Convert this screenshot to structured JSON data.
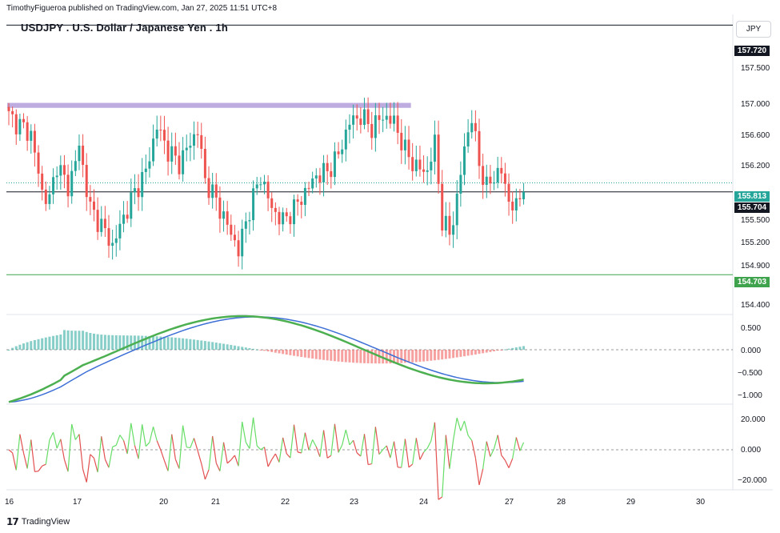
{
  "header": {
    "published_by": "TimothyFigueroa published on TradingView.com, Jan 27, 2025 11:51 UTC+8"
  },
  "chart": {
    "title": "USDJPY . U.S. Dollar / Japanese Yen . 1h",
    "currency": "JPY",
    "colors": {
      "up": "#26a69a",
      "down": "#ef5350",
      "zone": "#b39ddb",
      "macd_fast": "#4caf50",
      "macd_slow": "#3d6fd6",
      "macd_dark": "#a01010",
      "osc_up": "#66dd66",
      "osc_down": "#e35050",
      "green_level": "#3fa34d"
    }
  },
  "price_axis": {
    "ticks": [
      "157.500",
      "157.000",
      "156.600",
      "156.200",
      "155.500",
      "155.200",
      "154.900",
      "154.400"
    ],
    "tags": {
      "level_high": "157.720",
      "current": "155.813",
      "level_mid": "155.704",
      "level_low": "154.703"
    }
  },
  "macd_axis": {
    "ticks": [
      "0.500",
      "0.000",
      "−0.500",
      "−1.000"
    ]
  },
  "osc_axis": {
    "ticks": [
      "20.000",
      "0.000",
      "−20.000"
    ]
  },
  "time_axis": {
    "labels": [
      "16",
      "17",
      "20",
      "21",
      "22",
      "23",
      "24",
      "27",
      "28",
      "29",
      "30"
    ]
  },
  "chart_data": {
    "type": "candlestick",
    "symbol": "USDJPY",
    "interval": "1h",
    "levels": [
      157.72,
      155.704,
      154.703
    ],
    "current_price": 155.813,
    "zone": [
      156.72,
      156.78
    ],
    "ylim": [
      154.25,
      157.85
    ],
    "close_path": [
      [
        0,
        156.62
      ],
      [
        6,
        156.4
      ],
      [
        9,
        155.7
      ],
      [
        11,
        155.6
      ],
      [
        13,
        156.05
      ],
      [
        16,
        155.75
      ],
      [
        19,
        156.25
      ],
      [
        22,
        155.5
      ],
      [
        25,
        155.3
      ],
      [
        28,
        155.05
      ],
      [
        31,
        155.4
      ],
      [
        34,
        155.7
      ],
      [
        37,
        155.95
      ],
      [
        40,
        156.5
      ],
      [
        43,
        156.2
      ],
      [
        46,
        156.05
      ],
      [
        49,
        156.3
      ],
      [
        51,
        156.45
      ],
      [
        53,
        155.85
      ],
      [
        56,
        155.6
      ],
      [
        59,
        155.3
      ],
      [
        62,
        155.0
      ],
      [
        65,
        155.5
      ],
      [
        68,
        155.9
      ],
      [
        71,
        155.5
      ],
      [
        74,
        155.35
      ],
      [
        77,
        155.5
      ],
      [
        80,
        155.7
      ],
      [
        83,
        155.9
      ],
      [
        86,
        155.95
      ],
      [
        89,
        156.15
      ],
      [
        92,
        156.55
      ],
      [
        95,
        156.62
      ],
      [
        98,
        156.48
      ],
      [
        101,
        156.62
      ],
      [
        104,
        156.55
      ],
      [
        107,
        156.2
      ],
      [
        110,
        156.0
      ],
      [
        113,
        155.95
      ],
      [
        115,
        156.3
      ],
      [
        117,
        155.35
      ],
      [
        119,
        155.2
      ],
      [
        121,
        155.6
      ],
      [
        123,
        156.25
      ],
      [
        125,
        156.6
      ],
      [
        127,
        156.05
      ],
      [
        129,
        155.75
      ],
      [
        131,
        155.9
      ],
      [
        133,
        155.95
      ],
      [
        135,
        155.6
      ],
      [
        137,
        155.5
      ],
      [
        139,
        155.81
      ]
    ],
    "x_labels": [
      "16",
      "17",
      "20",
      "21",
      "22",
      "23",
      "24",
      "27",
      "28",
      "29",
      "30"
    ]
  }
}
